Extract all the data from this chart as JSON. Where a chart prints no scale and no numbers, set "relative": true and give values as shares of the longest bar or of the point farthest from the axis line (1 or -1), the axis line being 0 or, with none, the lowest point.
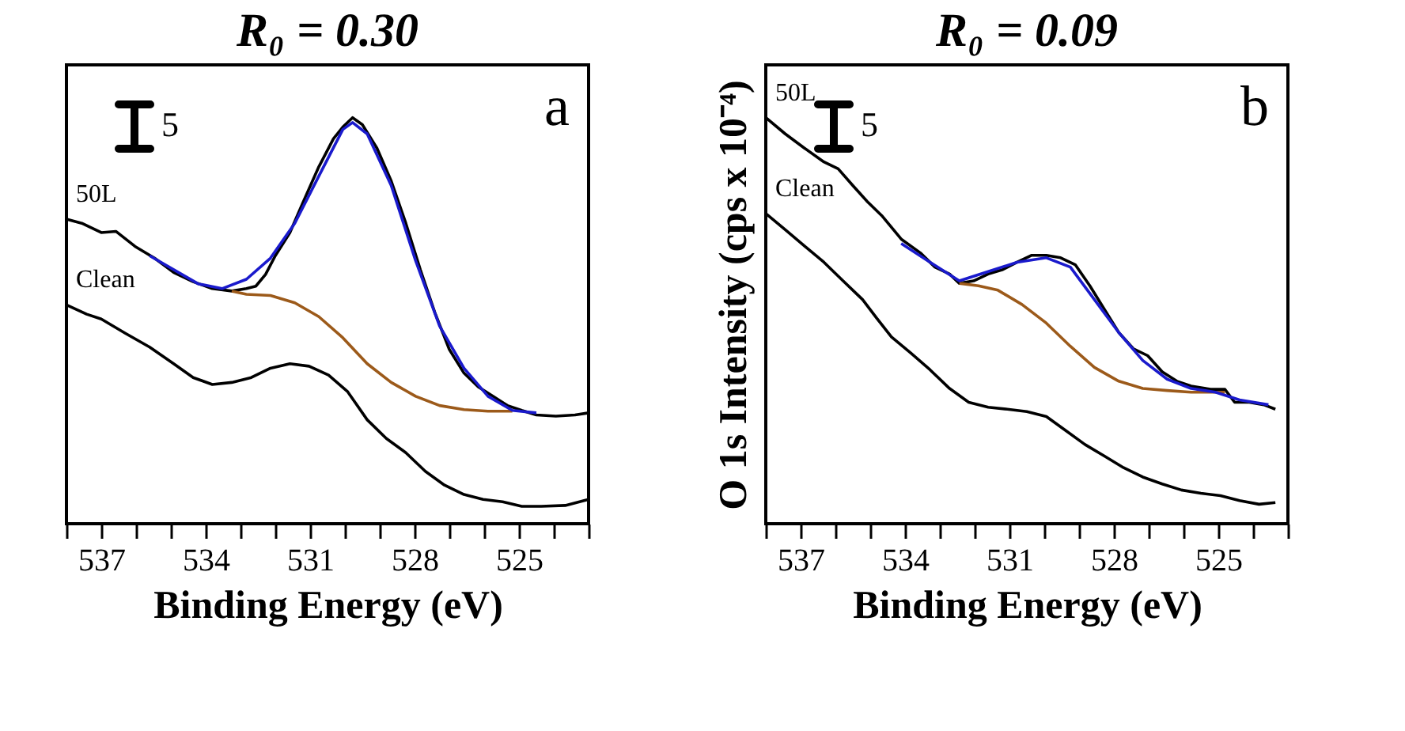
{
  "chart_data": [
    {
      "type": "line",
      "title": "R₀ = 0.30",
      "xlabel": "Binding Energy (eV)",
      "relative": true,
      "xlim": [
        538,
        523
      ],
      "xticks": [
        {
          "value": 538,
          "label": null
        },
        537,
        {
          "value": 536,
          "label": null
        },
        {
          "value": 535,
          "label": null
        },
        534,
        {
          "value": 533,
          "label": null
        },
        {
          "value": 532,
          "label": null
        },
        531,
        {
          "value": 530,
          "label": null
        },
        {
          "value": 529,
          "label": null
        },
        528,
        {
          "value": 527,
          "label": null
        },
        {
          "value": 526,
          "label": null
        },
        525,
        {
          "value": 524,
          "label": null
        },
        {
          "value": 523,
          "label": null
        }
      ],
      "annotations": [
        "a",
        "5"
      ],
      "series": [
        {
          "name": "50L",
          "color": "#000000",
          "x": [
            538.0,
            537.56,
            537.0,
            536.58,
            536.03,
            535.47,
            534.92,
            534.36,
            533.81,
            533.25,
            532.83,
            532.56,
            532.28,
            532.0,
            531.58,
            531.17,
            530.75,
            530.33,
            530.06,
            529.78,
            529.5,
            529.08,
            528.67,
            528.25,
            527.83,
            527.42,
            527.0,
            526.58,
            526.17,
            525.75,
            525.33,
            524.92,
            524.5,
            523.94,
            523.39,
            523.0
          ],
          "values": [
            0.75,
            0.74,
            0.717,
            0.72,
            0.683,
            0.654,
            0.619,
            0.596,
            0.579,
            0.573,
            0.579,
            0.585,
            0.614,
            0.66,
            0.717,
            0.798,
            0.879,
            0.948,
            0.977,
            1.0,
            0.983,
            0.925,
            0.844,
            0.74,
            0.625,
            0.521,
            0.429,
            0.371,
            0.337,
            0.314,
            0.291,
            0.279,
            0.268,
            0.265,
            0.268,
            0.273
          ]
        },
        {
          "name": "Clean",
          "color": "#000000",
          "x": [
            538.0,
            537.42,
            537.0,
            536.31,
            535.61,
            534.92,
            534.36,
            533.81,
            533.25,
            532.69,
            532.14,
            531.58,
            531.03,
            530.47,
            529.92,
            529.36,
            528.81,
            528.25,
            527.69,
            527.14,
            526.58,
            526.03,
            525.47,
            524.92,
            524.36,
            523.67,
            523.0
          ],
          "values": [
            0.539,
            0.516,
            0.504,
            0.469,
            0.435,
            0.394,
            0.36,
            0.343,
            0.348,
            0.36,
            0.383,
            0.394,
            0.388,
            0.366,
            0.325,
            0.256,
            0.21,
            0.175,
            0.129,
            0.095,
            0.072,
            0.06,
            0.054,
            0.043,
            0.043,
            0.045,
            0.06
          ]
        },
        {
          "color": "#9c5a1a",
          "x": [
            533.25,
            532.83,
            532.14,
            531.44,
            530.75,
            530.06,
            529.36,
            528.67,
            527.97,
            527.28,
            526.58,
            525.89,
            525.19
          ],
          "values": [
            0.573,
            0.565,
            0.562,
            0.544,
            0.51,
            0.458,
            0.394,
            0.348,
            0.314,
            0.291,
            0.281,
            0.277,
            0.277
          ]
        },
        {
          "color": "#1a1acc",
          "x": [
            535.61,
            534.22,
            533.53,
            532.83,
            532.14,
            531.44,
            530.75,
            530.06,
            529.78,
            529.36,
            528.67,
            527.97,
            527.28,
            526.58,
            525.89,
            525.19,
            524.5
          ],
          "values": [
            0.66,
            0.591,
            0.579,
            0.602,
            0.654,
            0.74,
            0.856,
            0.971,
            0.988,
            0.96,
            0.833,
            0.648,
            0.487,
            0.383,
            0.314,
            0.279,
            0.273
          ]
        }
      ]
    },
    {
      "type": "line",
      "title": "R₀ = 0.09",
      "xlabel": "Binding Energy (eV)",
      "ylabel": "O 1s Intensity (cps x 10⁻⁴)",
      "relative": true,
      "xlim": [
        538,
        523
      ],
      "xticks": [
        {
          "value": 538,
          "label": null
        },
        537,
        {
          "value": 536,
          "label": null
        },
        {
          "value": 535,
          "label": null
        },
        534,
        {
          "value": 533,
          "label": null
        },
        {
          "value": 532,
          "label": null
        },
        531,
        {
          "value": 530,
          "label": null
        },
        {
          "value": 529,
          "label": null
        },
        528,
        {
          "value": 527,
          "label": null
        },
        {
          "value": 526,
          "label": null
        },
        525,
        {
          "value": 524,
          "label": null
        },
        {
          "value": 523,
          "label": null
        }
      ],
      "annotations": [
        "b",
        "5"
      ],
      "series": [
        {
          "name": "50L",
          "color": "#000000",
          "x": [
            538.0,
            537.44,
            536.89,
            536.33,
            535.92,
            535.5,
            535.08,
            534.67,
            534.11,
            533.56,
            533.14,
            532.72,
            532.44,
            532.03,
            531.61,
            531.19,
            530.78,
            530.36,
            529.94,
            529.53,
            529.11,
            528.69,
            528.28,
            527.86,
            527.44,
            527.03,
            526.61,
            526.19,
            525.78,
            525.22,
            524.81,
            524.53,
            524.11,
            523.69,
            523.36
          ],
          "values": [
            1.0,
            0.96,
            0.925,
            0.891,
            0.874,
            0.833,
            0.793,
            0.759,
            0.701,
            0.667,
            0.632,
            0.615,
            0.592,
            0.598,
            0.615,
            0.626,
            0.644,
            0.661,
            0.661,
            0.655,
            0.638,
            0.586,
            0.529,
            0.471,
            0.431,
            0.414,
            0.374,
            0.351,
            0.339,
            0.331,
            0.331,
            0.299,
            0.299,
            0.293,
            0.282
          ]
        },
        {
          "name": "Clean",
          "color": "#000000",
          "x": [
            538.0,
            537.44,
            536.89,
            536.33,
            535.78,
            535.22,
            534.81,
            534.39,
            533.83,
            533.28,
            532.72,
            532.17,
            531.61,
            531.06,
            530.5,
            529.94,
            529.39,
            528.83,
            528.28,
            527.72,
            527.17,
            526.61,
            526.06,
            525.5,
            524.94,
            524.39,
            523.83,
            523.36
          ],
          "values": [
            0.764,
            0.724,
            0.684,
            0.644,
            0.598,
            0.552,
            0.506,
            0.46,
            0.42,
            0.379,
            0.333,
            0.299,
            0.287,
            0.282,
            0.276,
            0.264,
            0.23,
            0.195,
            0.167,
            0.138,
            0.115,
            0.098,
            0.083,
            0.075,
            0.069,
            0.057,
            0.048,
            0.052
          ]
        },
        {
          "color": "#9c5a1a",
          "x": [
            532.44,
            531.89,
            531.33,
            530.64,
            529.94,
            529.25,
            528.56,
            527.86,
            527.17,
            526.47,
            525.78,
            524.81
          ],
          "values": [
            0.592,
            0.586,
            0.575,
            0.54,
            0.494,
            0.437,
            0.385,
            0.351,
            0.333,
            0.328,
            0.324,
            0.324
          ]
        },
        {
          "color": "#1a1acc",
          "x": [
            534.11,
            533.28,
            532.44,
            531.61,
            530.78,
            529.94,
            529.25,
            528.56,
            527.86,
            527.17,
            526.47,
            525.78,
            525.08,
            524.39,
            523.56
          ],
          "values": [
            0.69,
            0.644,
            0.598,
            0.621,
            0.644,
            0.655,
            0.632,
            0.552,
            0.471,
            0.402,
            0.356,
            0.333,
            0.324,
            0.305,
            0.293
          ]
        }
      ]
    }
  ]
}
